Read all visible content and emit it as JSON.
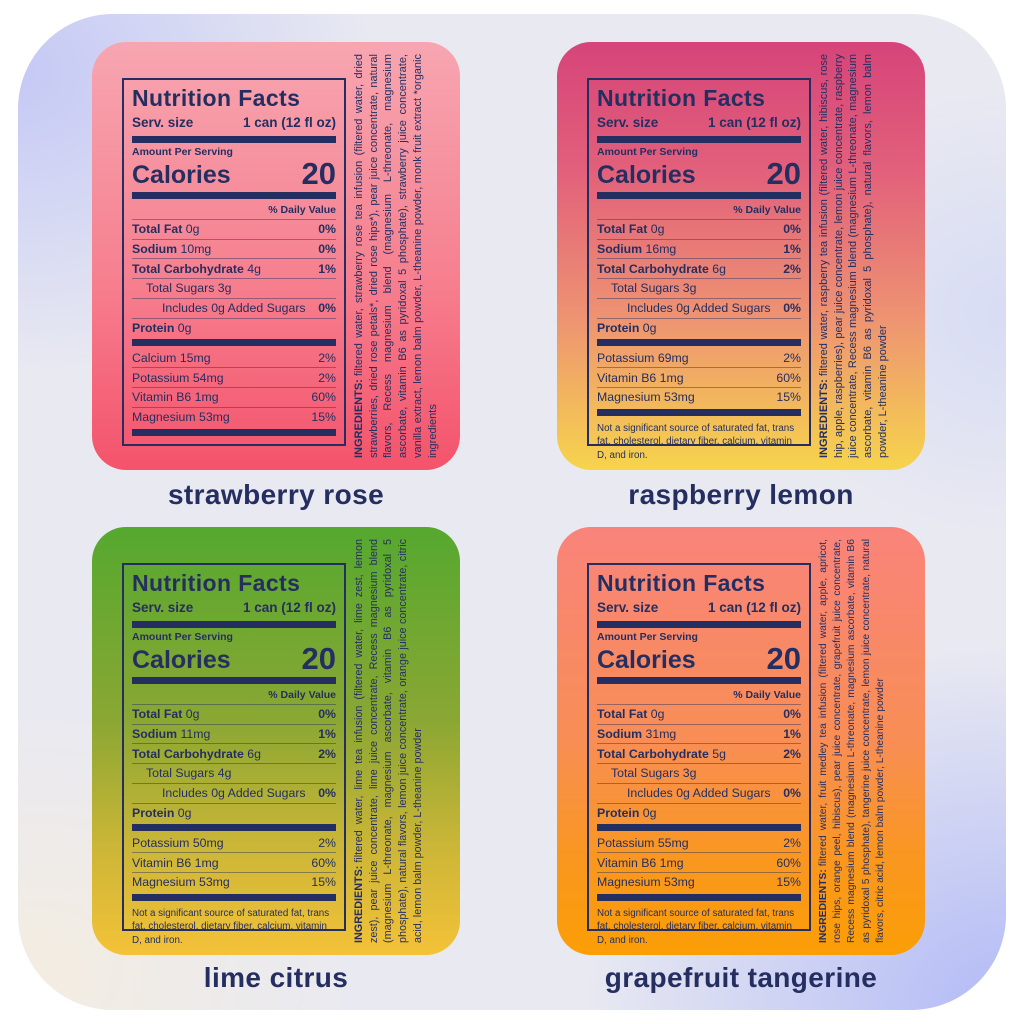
{
  "colors": {
    "navy": "#252e60",
    "background_base": "#e9eaf1",
    "background_periwinkle": "#c5c9f5",
    "background_cream": "#f3ece1",
    "background_periwinkle_deep": "#b2baf6"
  },
  "shared": {
    "title": "Nutrition Facts",
    "serving_label": "Serv. size",
    "serving_value": "1 can (12 fl oz)",
    "amount_per_serving": "Amount Per Serving",
    "calories_label": "Calories",
    "daily_value_header": "% Daily Value",
    "ingredients_prefix": "INGREDIENTS:",
    "footnote": "Not a significant source of saturated fat, trans fat, cholesterol, dietary fiber, calcium, vitamin D, and iron."
  },
  "labels": [
    {
      "flavor": "strawberry rose",
      "calories": "20",
      "gradient": [
        "#f7a6b1 0%",
        "#f6808f 55%",
        "#f4536b 100%"
      ],
      "rows": [
        {
          "label": "Total Fat",
          "amount": "0g",
          "dv": "0%",
          "bold": true,
          "dv_bold": true,
          "indent": 0
        },
        {
          "label": "Sodium",
          "amount": "10mg",
          "dv": "0%",
          "bold": true,
          "dv_bold": true,
          "indent": 0
        },
        {
          "label": "Total Carbohydrate",
          "amount": "4g",
          "dv": "1%",
          "bold": true,
          "dv_bold": true,
          "indent": 0
        },
        {
          "label": "Total Sugars",
          "amount": "3g",
          "dv": "",
          "bold": false,
          "dv_bold": false,
          "indent": 1
        },
        {
          "label": "Includes 0g Added Sugars",
          "amount": "",
          "dv": "0%",
          "bold": false,
          "dv_bold": true,
          "indent": 2
        },
        {
          "label": "Protein",
          "amount": "0g",
          "dv": "",
          "bold": true,
          "dv_bold": false,
          "indent": 0
        }
      ],
      "minerals": [
        {
          "label": "Calcium",
          "amount": "15mg",
          "dv": "2%",
          "bold": false,
          "dv_bold": false,
          "indent": 0
        },
        {
          "label": "Potassium",
          "amount": "54mg",
          "dv": "2%",
          "bold": false,
          "dv_bold": false,
          "indent": 0
        },
        {
          "label": "Vitamin B6",
          "amount": "1mg",
          "dv": "60%",
          "bold": false,
          "dv_bold": false,
          "indent": 0
        },
        {
          "label": "Magnesium",
          "amount": "53mg",
          "dv": "15%",
          "bold": false,
          "dv_bold": false,
          "indent": 0
        }
      ],
      "footnote": "",
      "ingredients": "filtered water, strawberry rose tea infusion (filtered water, dried strawberries, dried rose petals*, dried rose hips*), pear juice concentrate, natural flavors, Recess magnesium blend (magnesium L-threonate, magnesium ascorbate, vitamin B6 as pyridoxal 5 phosphate), strawberry juice concentrate, vanilla extract, lemon balm powder, L-theanine powder, monk fruit extract *organic ingredients"
    },
    {
      "flavor": "raspberry lemon",
      "calories": "20",
      "gradient": [
        "#d64479 0%",
        "#e2607b 30%",
        "#ee9472 65%",
        "#f6d44c 100%"
      ],
      "rows": [
        {
          "label": "Total Fat",
          "amount": "0g",
          "dv": "0%",
          "bold": true,
          "dv_bold": true,
          "indent": 0
        },
        {
          "label": "Sodium",
          "amount": "16mg",
          "dv": "1%",
          "bold": true,
          "dv_bold": true,
          "indent": 0
        },
        {
          "label": "Total Carbohydrate",
          "amount": "6g",
          "dv": "2%",
          "bold": true,
          "dv_bold": true,
          "indent": 0
        },
        {
          "label": "Total Sugars",
          "amount": "3g",
          "dv": "",
          "bold": false,
          "dv_bold": false,
          "indent": 1
        },
        {
          "label": "Includes 0g Added Sugars",
          "amount": "",
          "dv": "0%",
          "bold": false,
          "dv_bold": true,
          "indent": 2
        },
        {
          "label": "Protein",
          "amount": "0g",
          "dv": "",
          "bold": true,
          "dv_bold": false,
          "indent": 0
        }
      ],
      "minerals": [
        {
          "label": "Potassium",
          "amount": "69mg",
          "dv": "2%",
          "bold": false,
          "dv_bold": false,
          "indent": 0
        },
        {
          "label": "Vitamin B6",
          "amount": "1mg",
          "dv": "60%",
          "bold": false,
          "dv_bold": false,
          "indent": 0
        },
        {
          "label": "Magnesium",
          "amount": "53mg",
          "dv": "15%",
          "bold": false,
          "dv_bold": false,
          "indent": 0
        }
      ],
      "footnote": "Not a significant source of saturated fat, trans fat, cholesterol, dietary fiber, calcium, vitamin D, and iron.",
      "ingredients": "filtered water, raspberry tea infusion (filtered water, hibiscus, rose hip, apple, raspberries), pear juice concentrate, lemon juice concentrate, raspberry juice concentrate, Recess magnesium blend (magnesium L-threonate, magnesium ascorbate, vitamin B6 as pyridoxal 5 phosphate), natural flavors, lemon balm powder, L-theanine powder"
    },
    {
      "flavor": "lime citrus",
      "calories": "20",
      "gradient": [
        "#55a82f 0%",
        "#8aa733 45%",
        "#ccb637 75%",
        "#f4c238 100%"
      ],
      "rows": [
        {
          "label": "Total Fat",
          "amount": "0g",
          "dv": "0%",
          "bold": true,
          "dv_bold": true,
          "indent": 0
        },
        {
          "label": "Sodium",
          "amount": "11mg",
          "dv": "1%",
          "bold": true,
          "dv_bold": true,
          "indent": 0
        },
        {
          "label": "Total Carbohydrate",
          "amount": "6g",
          "dv": "2%",
          "bold": true,
          "dv_bold": true,
          "indent": 0
        },
        {
          "label": "Total Sugars",
          "amount": "4g",
          "dv": "",
          "bold": false,
          "dv_bold": false,
          "indent": 1
        },
        {
          "label": "Includes 0g Added Sugars",
          "amount": "",
          "dv": "0%",
          "bold": false,
          "dv_bold": true,
          "indent": 2
        },
        {
          "label": "Protein",
          "amount": "0g",
          "dv": "",
          "bold": true,
          "dv_bold": false,
          "indent": 0
        }
      ],
      "minerals": [
        {
          "label": "Potassium",
          "amount": "50mg",
          "dv": "2%",
          "bold": false,
          "dv_bold": false,
          "indent": 0
        },
        {
          "label": "Vitamin B6",
          "amount": "1mg",
          "dv": "60%",
          "bold": false,
          "dv_bold": false,
          "indent": 0
        },
        {
          "label": "Magnesium",
          "amount": "53mg",
          "dv": "15%",
          "bold": false,
          "dv_bold": false,
          "indent": 0
        }
      ],
      "footnote": "Not a significant source of saturated fat, trans fat, cholesterol, dietary fiber, calcium, vitamin D, and iron.",
      "ingredients": "filtered water, lime tea infusion (filtered water, lime zest, lemon zest), pear juice concentrate, lime juice concentrate, Recess magnesium blend (magnesium L-threonate, magnesium ascorbate, vitamin B6 as pyridoxal 5 phosphate), natural flavors, lemon juice concentrate, orange juice concentrate, citric acid, lemon balm powder, L-theanine powder"
    },
    {
      "flavor": "grapefruit tangerine",
      "calories": "20",
      "gradient": [
        "#f9837b 0%",
        "#f88e55 50%",
        "#f9971f 78%",
        "#fb9e06 100%"
      ],
      "rows": [
        {
          "label": "Total Fat",
          "amount": "0g",
          "dv": "0%",
          "bold": true,
          "dv_bold": true,
          "indent": 0
        },
        {
          "label": "Sodium",
          "amount": "31mg",
          "dv": "1%",
          "bold": true,
          "dv_bold": true,
          "indent": 0
        },
        {
          "label": "Total Carbohydrate",
          "amount": "5g",
          "dv": "2%",
          "bold": true,
          "dv_bold": true,
          "indent": 0
        },
        {
          "label": "Total Sugars",
          "amount": "3g",
          "dv": "",
          "bold": false,
          "dv_bold": false,
          "indent": 1
        },
        {
          "label": "Includes 0g Added Sugars",
          "amount": "",
          "dv": "0%",
          "bold": false,
          "dv_bold": true,
          "indent": 2
        },
        {
          "label": "Protein",
          "amount": "0g",
          "dv": "",
          "bold": true,
          "dv_bold": false,
          "indent": 0
        }
      ],
      "minerals": [
        {
          "label": "Potassium",
          "amount": "55mg",
          "dv": "2%",
          "bold": false,
          "dv_bold": false,
          "indent": 0
        },
        {
          "label": "Vitamin B6",
          "amount": "1mg",
          "dv": "60%",
          "bold": false,
          "dv_bold": false,
          "indent": 0
        },
        {
          "label": "Magnesium",
          "amount": "53mg",
          "dv": "15%",
          "bold": false,
          "dv_bold": false,
          "indent": 0
        }
      ],
      "footnote": "Not a significant source of saturated fat, trans fat, cholesterol, dietary fiber, calcium, vitamin D, and iron.",
      "ingredients": "filtered water, fruit medley tea infusion (filtered water, apple, apricot, rose hips, orange peel, hibiscus), pear juice concentrate, grapefruit juice concentrate, Recess magnesium blend (magnesium L-threonate, magnesium ascorbate, vitamin B6 as pyridoxal 5 phosphate), tangerine juice concentrate, lemon juice concentrate, natural flavors, citric acid, lemon balm powder, L-theanine powder"
    }
  ]
}
